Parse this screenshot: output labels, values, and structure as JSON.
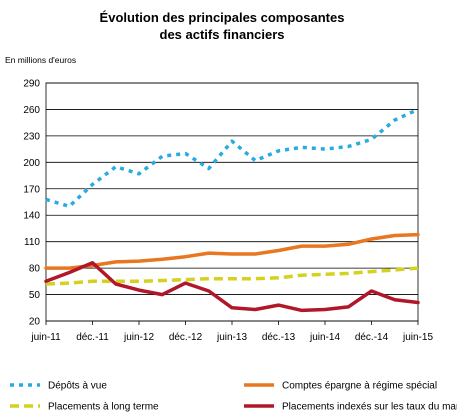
{
  "chart_data": {
    "type": "line",
    "title": [
      "Évolution des principales composantes",
      "des actifs financiers"
    ],
    "unit_label": "En millions d'euros",
    "xlabel": "",
    "ylabel": "",
    "ylim": [
      20,
      290
    ],
    "y_ticks": [
      20,
      50,
      80,
      110,
      140,
      170,
      200,
      230,
      260,
      290
    ],
    "x_tick_labels": [
      "juin-11",
      "déc.-11",
      "juin-12",
      "déc.-12",
      "juin-13",
      "déc.-13",
      "juin-14",
      "déc.-14",
      "juin-15"
    ],
    "x_range": [
      0,
      16
    ],
    "grid": "horizontal",
    "legend_position": "bottom",
    "series": [
      {
        "name": "Dépôts à vue",
        "color": "#29abe2",
        "style": "dotted",
        "x": [
          0,
          1,
          2,
          3,
          4,
          5,
          6,
          7,
          8,
          9,
          10,
          11,
          12,
          13,
          14,
          15,
          16
        ],
        "values": [
          158,
          150,
          175,
          195,
          187,
          207,
          210,
          193,
          224,
          202,
          213,
          217,
          215,
          218,
          226,
          248,
          260
        ]
      },
      {
        "name": "Comptes épargne à régime spécial",
        "color": "#e87722",
        "style": "solid",
        "x": [
          0,
          1,
          2,
          3,
          4,
          5,
          6,
          7,
          8,
          9,
          10,
          11,
          12,
          13,
          14,
          15,
          16
        ],
        "values": [
          80,
          80,
          83,
          87,
          88,
          90,
          93,
          97,
          96,
          96,
          100,
          105,
          105,
          107,
          113,
          117,
          118
        ]
      },
      {
        "name": "Placements à long terme",
        "color": "#d4d21f",
        "style": "dashed",
        "x": [
          0,
          1,
          2,
          3,
          4,
          5,
          6,
          7,
          8,
          9,
          10,
          11,
          12,
          13,
          14,
          15,
          16
        ],
        "values": [
          62,
          63,
          65,
          65,
          65,
          66,
          67,
          68,
          68,
          68,
          69,
          72,
          73,
          74,
          76,
          78,
          80
        ]
      },
      {
        "name": "Placements indexés sur les taux du marché",
        "color": "#b0182a",
        "style": "solid",
        "x": [
          0,
          1,
          2,
          3,
          4,
          5,
          6,
          7,
          8,
          9,
          10,
          11,
          12,
          13,
          14,
          15,
          16
        ],
        "values": [
          65,
          75,
          86,
          62,
          55,
          50,
          63,
          54,
          35,
          33,
          38,
          32,
          33,
          36,
          54,
          44,
          41
        ]
      }
    ]
  }
}
